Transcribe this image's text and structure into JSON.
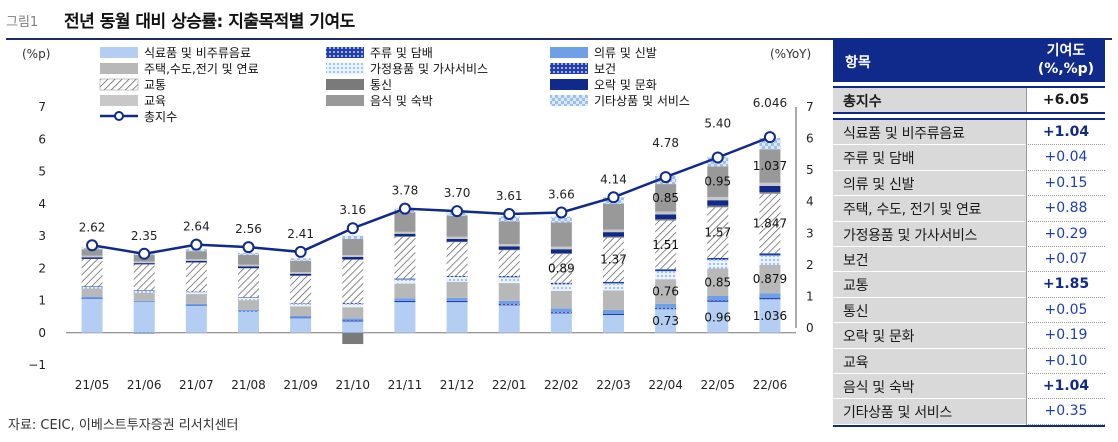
{
  "header": {
    "figure_label": "그림1",
    "title": "전년 동월 대비 상승률: 지출목적별 기여도"
  },
  "source": "자료: CEIC, 이베스트투자증권 리서치센터",
  "colors": {
    "navy": "#0f2a8a",
    "food": "#b3cdf3",
    "alcohol": "#1f3fb0",
    "clothing": "#6f9fe6",
    "housing": "#b8b8b8",
    "household": "#bcd6f5",
    "health": "#1f3fb0",
    "transport": "#ffffff",
    "communication": "#7a7a7a",
    "recreation": "#0f2a8a",
    "education": "#c8c8c8",
    "restaurants": "#999999",
    "misc": "#c6daf6",
    "line": "#0f2a8a"
  },
  "chart_data": {
    "type": "stacked-bar+line",
    "left_axis_label": "(%p)",
    "right_axis_label": "(%YoY)",
    "left_ylim": [
      -1,
      7
    ],
    "right_ylim": [
      0,
      7
    ],
    "left_ticks": [
      "−1",
      "0",
      "1",
      "2",
      "3",
      "4",
      "5",
      "6",
      "7"
    ],
    "right_ticks": [
      "0",
      "1",
      "2",
      "3",
      "4",
      "5",
      "6",
      "7"
    ],
    "categories": [
      "21/05",
      "21/06",
      "21/07",
      "21/08",
      "21/09",
      "21/10",
      "21/11",
      "21/12",
      "22/01",
      "22/02",
      "22/03",
      "22/04",
      "22/05",
      "22/06"
    ],
    "legend": [
      {
        "name": "식료품 및 비주류음료",
        "key": "food"
      },
      {
        "name": "주류 및 담배",
        "key": "alcohol"
      },
      {
        "name": "의류 및 신발",
        "key": "clothing"
      },
      {
        "name": "주택,수도,전기 및 연료",
        "key": "housing"
      },
      {
        "name": "가정용품 및 가사서비스",
        "key": "household"
      },
      {
        "name": "보건",
        "key": "health"
      },
      {
        "name": "교통",
        "key": "transport"
      },
      {
        "name": "통신",
        "key": "communication"
      },
      {
        "name": "오락 및 문화",
        "key": "recreation"
      },
      {
        "name": "교육",
        "key": "education"
      },
      {
        "name": "음식 및 숙박",
        "key": "restaurants"
      },
      {
        "name": "기타상품 및 서비스",
        "key": "misc"
      },
      {
        "name": "총지수",
        "key": "total"
      }
    ],
    "series": [
      {
        "key": "food",
        "name": "식료품 및 비주류음료",
        "values": [
          1.05,
          0.95,
          0.85,
          0.65,
          0.45,
          0.35,
          0.95,
          0.95,
          0.85,
          0.6,
          0.55,
          0.73,
          0.96,
          1.036
        ]
      },
      {
        "key": "alcohol",
        "name": "주류 및 담배",
        "values": [
          0.02,
          -0.02,
          0.01,
          0.02,
          0.02,
          0.03,
          0.04,
          0.04,
          0.04,
          0.04,
          0.04,
          0.04,
          0.04,
          0.04
        ]
      },
      {
        "key": "clothing",
        "name": "의류 및 신발",
        "values": [
          0.05,
          0.04,
          0.04,
          0.04,
          0.05,
          0.06,
          0.08,
          0.09,
          0.1,
          0.11,
          0.12,
          0.13,
          0.14,
          0.15
        ]
      },
      {
        "key": "housing",
        "name": "주택,수도,전기 및 연료",
        "values": [
          0.25,
          0.25,
          0.3,
          0.3,
          0.3,
          0.35,
          0.45,
          0.5,
          0.55,
          0.55,
          0.6,
          0.76,
          0.85,
          0.879
        ]
      },
      {
        "key": "household",
        "name": "가정용품 및 가사서비스",
        "values": [
          0.05,
          0.06,
          0.06,
          0.07,
          0.08,
          0.1,
          0.13,
          0.15,
          0.18,
          0.2,
          0.22,
          0.25,
          0.27,
          0.29
        ]
      },
      {
        "key": "health",
        "name": "보건",
        "values": [
          0.02,
          0.02,
          0.02,
          0.02,
          0.02,
          0.03,
          0.03,
          0.03,
          0.04,
          0.05,
          0.05,
          0.06,
          0.06,
          0.07
        ]
      },
      {
        "key": "transport",
        "name": "교통",
        "values": [
          0.85,
          0.8,
          0.9,
          0.9,
          0.85,
          1.35,
          1.3,
          1.05,
          0.8,
          0.89,
          1.37,
          1.51,
          1.57,
          1.847
        ]
      },
      {
        "key": "communication",
        "name": "통신",
        "values": [
          0.0,
          0.0,
          0.0,
          0.0,
          0.0,
          -0.35,
          0.01,
          0.02,
          0.02,
          0.03,
          0.03,
          0.04,
          0.05,
          0.05
        ]
      },
      {
        "key": "recreation",
        "name": "오락 및 문화",
        "values": [
          0.05,
          0.04,
          0.05,
          0.06,
          0.06,
          0.08,
          0.08,
          0.08,
          0.1,
          0.12,
          0.14,
          0.15,
          0.17,
          0.19
        ]
      },
      {
        "key": "education",
        "name": "교육",
        "values": [
          0.05,
          0.05,
          0.05,
          0.05,
          0.05,
          0.06,
          0.06,
          0.07,
          0.07,
          0.08,
          0.08,
          0.09,
          0.1,
          0.1
        ]
      },
      {
        "key": "restaurants",
        "name": "음식 및 숙박",
        "values": [
          0.2,
          0.2,
          0.25,
          0.3,
          0.35,
          0.5,
          0.6,
          0.65,
          0.7,
          0.75,
          0.8,
          0.85,
          0.95,
          1.037
        ]
      },
      {
        "key": "misc",
        "name": "기타상품 및 서비스",
        "values": [
          0.05,
          0.05,
          0.06,
          0.07,
          0.08,
          0.1,
          0.12,
          0.14,
          0.16,
          0.18,
          0.2,
          0.25,
          0.3,
          0.35
        ]
      }
    ],
    "total": {
      "name": "총지수",
      "values": [
        2.62,
        2.35,
        2.64,
        2.56,
        2.41,
        3.16,
        3.78,
        3.7,
        3.61,
        3.66,
        4.14,
        4.78,
        5.4,
        6.046
      ]
    },
    "total_labels": [
      "2.62",
      "2.35",
      "2.64",
      "2.56",
      "2.41",
      "3.16",
      "3.78",
      "3.70",
      "3.61",
      "3.66",
      "4.14",
      "4.78",
      "5.40",
      "6.046"
    ],
    "segment_labels": [
      {
        "category": "22/02",
        "series": "transport",
        "text": "0.89"
      },
      {
        "category": "22/03",
        "series": "transport",
        "text": "1.37"
      },
      {
        "category": "22/04",
        "series": "transport",
        "text": "1.51"
      },
      {
        "category": "22/05",
        "series": "transport",
        "text": "1.57"
      },
      {
        "category": "22/06",
        "series": "transport",
        "text": "1.847"
      },
      {
        "category": "22/04",
        "series": "restaurants",
        "text": "0.85"
      },
      {
        "category": "22/05",
        "series": "restaurants",
        "text": "0.95"
      },
      {
        "category": "22/06",
        "series": "restaurants",
        "text": "1.037"
      },
      {
        "category": "22/04",
        "series": "housing",
        "text": "0.76"
      },
      {
        "category": "22/05",
        "series": "housing",
        "text": "0.85"
      },
      {
        "category": "22/06",
        "series": "housing",
        "text": "0.879"
      },
      {
        "category": "22/04",
        "series": "food",
        "text": "0.73"
      },
      {
        "category": "22/05",
        "series": "food",
        "text": "0.96"
      },
      {
        "category": "22/06",
        "series": "food",
        "text": "1.036"
      }
    ]
  },
  "table": {
    "col_item": "항목",
    "col_value": "기여도 (%,%p)",
    "total": {
      "name": "총지수",
      "value": "+6.05"
    },
    "rows": [
      {
        "name": "식료품 및 비주류음료",
        "value": "+1.04",
        "bold": true
      },
      {
        "name": "주류 및 담배",
        "value": "+0.04",
        "bold": false
      },
      {
        "name": "의류 및 신발",
        "value": "+0.15",
        "bold": false
      },
      {
        "name": "주택, 수도, 전기 및 연료",
        "value": "+0.88",
        "bold": false
      },
      {
        "name": "가정용품 및 가사서비스",
        "value": "+0.29",
        "bold": false
      },
      {
        "name": "보건",
        "value": "+0.07",
        "bold": false
      },
      {
        "name": "교통",
        "value": "+1.85",
        "bold": true
      },
      {
        "name": "통신",
        "value": "+0.05",
        "bold": false
      },
      {
        "name": "오락 및 문화",
        "value": "+0.19",
        "bold": false
      },
      {
        "name": "교육",
        "value": "+0.10",
        "bold": false
      },
      {
        "name": "음식 및 숙박",
        "value": "+1.04",
        "bold": true
      },
      {
        "name": "기타상품 및 서비스",
        "value": "+0.35",
        "bold": false
      }
    ]
  }
}
